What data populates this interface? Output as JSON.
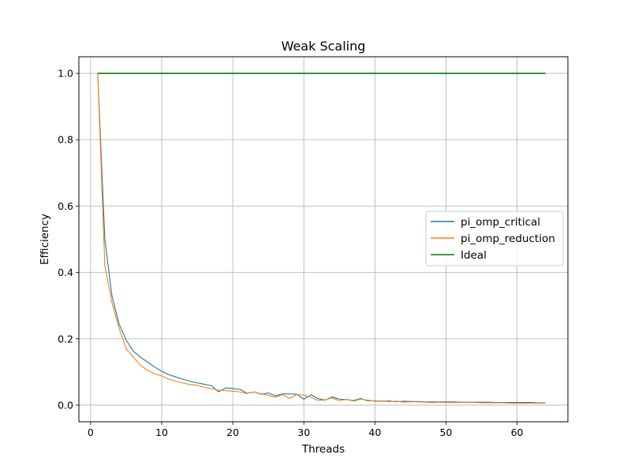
{
  "chart_data": {
    "type": "line",
    "title": "Weak Scaling",
    "xlabel": "Threads",
    "ylabel": "Efficiency",
    "xlim": [
      -1.65,
      67.15
    ],
    "ylim": [
      -0.05,
      1.05
    ],
    "xticks": [
      0,
      10,
      20,
      30,
      40,
      50,
      60
    ],
    "yticks": [
      0.0,
      0.2,
      0.4,
      0.6,
      0.8,
      1.0
    ],
    "xtick_labels": [
      "0",
      "10",
      "20",
      "30",
      "40",
      "50",
      "60"
    ],
    "ytick_labels": [
      "0.0",
      "0.2",
      "0.4",
      "0.6",
      "0.8",
      "1.0"
    ],
    "grid": true,
    "legend_position": "center-right",
    "x": [
      1,
      2,
      3,
      4,
      5,
      6,
      7,
      8,
      9,
      10,
      11,
      12,
      13,
      14,
      15,
      16,
      17,
      18,
      19,
      20,
      21,
      22,
      23,
      24,
      25,
      26,
      27,
      28,
      29,
      30,
      31,
      32,
      33,
      34,
      35,
      36,
      37,
      38,
      39,
      40,
      41,
      42,
      43,
      44,
      45,
      46,
      47,
      48,
      49,
      50,
      51,
      52,
      53,
      54,
      55,
      56,
      57,
      58,
      59,
      60,
      61,
      62,
      63,
      64
    ],
    "series": [
      {
        "name": "pi_omp_critical",
        "color": "#1f77b4",
        "values": [
          1.0,
          0.5,
          0.33,
          0.245,
          0.196,
          0.163,
          0.145,
          0.13,
          0.115,
          0.102,
          0.092,
          0.085,
          0.078,
          0.072,
          0.067,
          0.063,
          0.059,
          0.04,
          0.052,
          0.05,
          0.048,
          0.036,
          0.04,
          0.033,
          0.037,
          0.028,
          0.034,
          0.034,
          0.033,
          0.018,
          0.031,
          0.02,
          0.015,
          0.025,
          0.018,
          0.017,
          0.014,
          0.02,
          0.013,
          0.013,
          0.012,
          0.013,
          0.01,
          0.012,
          0.011,
          0.011,
          0.01,
          0.01,
          0.01,
          0.01,
          0.01,
          0.009,
          0.009,
          0.009,
          0.009,
          0.009,
          0.008,
          0.008,
          0.008,
          0.008,
          0.008,
          0.008,
          0.007,
          0.007
        ]
      },
      {
        "name": "pi_omp_reduction",
        "color": "#ff7f0e",
        "values": [
          1.0,
          0.42,
          0.31,
          0.232,
          0.17,
          0.145,
          0.12,
          0.105,
          0.095,
          0.088,
          0.078,
          0.072,
          0.067,
          0.062,
          0.06,
          0.054,
          0.05,
          0.045,
          0.044,
          0.042,
          0.04,
          0.035,
          0.04,
          0.034,
          0.03,
          0.024,
          0.032,
          0.02,
          0.032,
          0.03,
          0.024,
          0.014,
          0.016,
          0.022,
          0.013,
          0.018,
          0.012,
          0.018,
          0.015,
          0.012,
          0.013,
          0.011,
          0.012,
          0.009,
          0.01,
          0.01,
          0.009,
          0.008,
          0.009,
          0.008,
          0.008,
          0.008,
          0.008,
          0.008,
          0.007,
          0.007,
          0.007,
          0.007,
          0.006,
          0.006,
          0.006,
          0.006,
          0.006,
          0.006
        ]
      },
      {
        "name": "Ideal",
        "color": "#008000",
        "x": [
          1,
          64
        ],
        "values": [
          1.0,
          1.0
        ]
      }
    ]
  }
}
